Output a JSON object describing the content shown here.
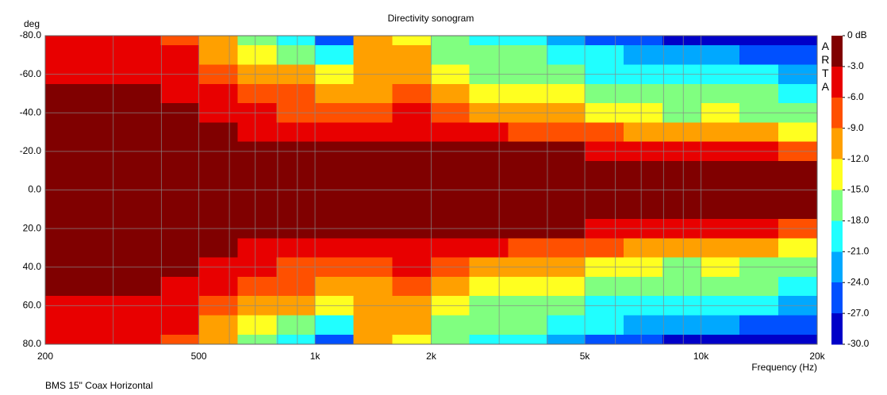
{
  "chart_data": {
    "type": "heatmap",
    "title": "Directivity sonogram",
    "y_label": "deg",
    "x_label": "Frequency (Hz)",
    "footnote": "BMS 15\" Coax Horizontal",
    "watermark": "ARTA",
    "x_scale": "log",
    "xlim": [
      200,
      20000
    ],
    "xticks": [
      200,
      500,
      {
        "value": 1000,
        "label": "1k"
      },
      {
        "value": 2000,
        "label": "2k"
      },
      {
        "value": 5000,
        "label": "5k"
      },
      {
        "value": 10000,
        "label": "10k"
      },
      {
        "value": 20000,
        "label": "20k"
      }
    ],
    "xminor": [
      300,
      400,
      600,
      700,
      800,
      900,
      3000,
      4000,
      6000,
      7000,
      8000,
      9000
    ],
    "ylim": [
      -80,
      80
    ],
    "yticks": [
      {
        "value": -80,
        "label": "-80.0"
      },
      {
        "value": -60,
        "label": "-60.0"
      },
      {
        "value": -40,
        "label": "-40.0"
      },
      {
        "value": -20,
        "label": "-20.0"
      },
      {
        "value": 0,
        "label": "0.0"
      },
      {
        "value": 20,
        "label": "20.0"
      },
      {
        "value": 40,
        "label": "40.0"
      },
      {
        "value": 60,
        "label": "60.0"
      },
      {
        "value": 80,
        "label": "80.0"
      }
    ],
    "zlim": [
      -30,
      0
    ],
    "zticks": [
      {
        "value": 0,
        "label": "0 dB"
      },
      {
        "value": -3,
        "label": "-3.0"
      },
      {
        "value": -6,
        "label": "-6.0"
      },
      {
        "value": -9,
        "label": "-9.0"
      },
      {
        "value": -12,
        "label": "-12.0"
      },
      {
        "value": -15,
        "label": "-15.0"
      },
      {
        "value": -18,
        "label": "-18.0"
      },
      {
        "value": -21,
        "label": "-21.0"
      },
      {
        "value": -24,
        "label": "-24.0"
      },
      {
        "value": -27,
        "label": "-27.0"
      },
      {
        "value": -30,
        "label": "-30.0"
      }
    ],
    "colors": [
      "#800000",
      "#e80000",
      "#ff5000",
      "#ffa000",
      "#ffff20",
      "#80ff80",
      "#20ffff",
      "#00a8ff",
      "#0050ff",
      "#0000c8"
    ],
    "x": [
      224,
      282,
      355,
      447,
      562,
      708,
      891,
      1122,
      1413,
      1778,
      2239,
      2818,
      3548,
      4467,
      5623,
      7079,
      8913,
      11220,
      14125,
      17783
    ],
    "y": [
      -80,
      -70,
      -60,
      -50,
      -40,
      -30,
      -20,
      -10,
      0,
      10,
      20,
      30,
      40,
      50,
      60,
      70,
      80
    ],
    "z": [
      [
        -4.5,
        -4.5,
        -4.5,
        -7.5,
        -10.5,
        -16.5,
        -19.5,
        -25.5,
        -10.5,
        -13.5,
        -16.5,
        -19.5,
        -19.5,
        -22.5,
        -25.5,
        -25.5,
        -28.5,
        -28.5,
        -28.5,
        -28.5
      ],
      [
        -4.5,
        -4.5,
        -4.5,
        -4.5,
        -10.5,
        -13.5,
        -16.5,
        -19.5,
        -10.5,
        -10.5,
        -16.5,
        -16.5,
        -16.5,
        -19.5,
        -19.5,
        -22.5,
        -22.5,
        -22.5,
        -25.5,
        -25.5
      ],
      [
        -4.5,
        -4.5,
        -4.5,
        -4.5,
        -7.5,
        -10.5,
        -10.5,
        -13.5,
        -10.5,
        -10.5,
        -13.5,
        -16.5,
        -16.5,
        -16.5,
        -19.5,
        -19.5,
        -19.5,
        -19.5,
        -19.5,
        -22.5
      ],
      [
        -1.5,
        -1.5,
        -1.5,
        -4.5,
        -4.5,
        -7.5,
        -7.5,
        -10.5,
        -10.5,
        -7.5,
        -10.5,
        -13.5,
        -13.5,
        -13.5,
        -16.5,
        -16.5,
        -16.5,
        -16.5,
        -16.5,
        -19.5
      ],
      [
        -1.5,
        -1.5,
        -1.5,
        -1.5,
        -4.5,
        -4.5,
        -7.5,
        -7.5,
        -7.5,
        -4.5,
        -7.5,
        -10.5,
        -10.5,
        -10.5,
        -13.5,
        -13.5,
        -16.5,
        -13.5,
        -16.5,
        -16.5
      ],
      [
        -1.5,
        -1.5,
        -1.5,
        -1.5,
        -1.5,
        -4.5,
        -4.5,
        -4.5,
        -4.5,
        -4.5,
        -4.5,
        -4.5,
        -7.5,
        -7.5,
        -7.5,
        -10.5,
        -10.5,
        -10.5,
        -10.5,
        -13.5
      ],
      [
        -1.5,
        -1.5,
        -1.5,
        -1.5,
        -1.5,
        -1.5,
        -1.5,
        -1.5,
        -1.5,
        -1.5,
        -1.5,
        -1.5,
        -1.5,
        -1.5,
        -4.5,
        -4.5,
        -4.5,
        -4.5,
        -4.5,
        -7.5
      ],
      [
        -1.5,
        -1.5,
        -1.5,
        -1.5,
        -1.5,
        -1.5,
        -1.5,
        -1.5,
        -1.5,
        -1.5,
        -1.5,
        -1.5,
        -1.5,
        -1.5,
        -1.5,
        -1.5,
        -1.5,
        -1.5,
        -1.5,
        -1.5
      ],
      [
        -1.5,
        -1.5,
        -1.5,
        -1.5,
        -1.5,
        -1.5,
        -1.5,
        -1.5,
        -1.5,
        -1.5,
        -1.5,
        -1.5,
        -1.5,
        -1.5,
        -1.5,
        -1.5,
        -1.5,
        -1.5,
        -1.5,
        -1.5
      ],
      [
        -1.5,
        -1.5,
        -1.5,
        -1.5,
        -1.5,
        -1.5,
        -1.5,
        -1.5,
        -1.5,
        -1.5,
        -1.5,
        -1.5,
        -1.5,
        -1.5,
        -1.5,
        -1.5,
        -1.5,
        -1.5,
        -1.5,
        -1.5
      ],
      [
        -1.5,
        -1.5,
        -1.5,
        -1.5,
        -1.5,
        -1.5,
        -1.5,
        -1.5,
        -1.5,
        -1.5,
        -1.5,
        -1.5,
        -1.5,
        -1.5,
        -4.5,
        -4.5,
        -4.5,
        -4.5,
        -4.5,
        -7.5
      ],
      [
        -1.5,
        -1.5,
        -1.5,
        -1.5,
        -1.5,
        -4.5,
        -4.5,
        -4.5,
        -4.5,
        -4.5,
        -4.5,
        -4.5,
        -7.5,
        -7.5,
        -7.5,
        -10.5,
        -10.5,
        -10.5,
        -10.5,
        -13.5
      ],
      [
        -1.5,
        -1.5,
        -1.5,
        -1.5,
        -4.5,
        -4.5,
        -7.5,
        -7.5,
        -7.5,
        -4.5,
        -7.5,
        -10.5,
        -10.5,
        -10.5,
        -13.5,
        -13.5,
        -16.5,
        -13.5,
        -16.5,
        -16.5
      ],
      [
        -1.5,
        -1.5,
        -1.5,
        -4.5,
        -4.5,
        -7.5,
        -7.5,
        -10.5,
        -10.5,
        -7.5,
        -10.5,
        -13.5,
        -13.5,
        -13.5,
        -16.5,
        -16.5,
        -16.5,
        -16.5,
        -16.5,
        -19.5
      ],
      [
        -4.5,
        -4.5,
        -4.5,
        -4.5,
        -7.5,
        -10.5,
        -10.5,
        -13.5,
        -10.5,
        -10.5,
        -13.5,
        -16.5,
        -16.5,
        -16.5,
        -19.5,
        -19.5,
        -19.5,
        -19.5,
        -19.5,
        -22.5
      ],
      [
        -4.5,
        -4.5,
        -4.5,
        -4.5,
        -10.5,
        -13.5,
        -16.5,
        -19.5,
        -10.5,
        -10.5,
        -16.5,
        -16.5,
        -16.5,
        -19.5,
        -19.5,
        -22.5,
        -22.5,
        -22.5,
        -25.5,
        -25.5
      ],
      [
        -4.5,
        -4.5,
        -4.5,
        -7.5,
        -10.5,
        -16.5,
        -19.5,
        -25.5,
        -10.5,
        -13.5,
        -16.5,
        -19.5,
        -19.5,
        -22.5,
        -25.5,
        -25.5,
        -28.5,
        -28.5,
        -28.5,
        -28.5
      ]
    ],
    "grid": true
  }
}
